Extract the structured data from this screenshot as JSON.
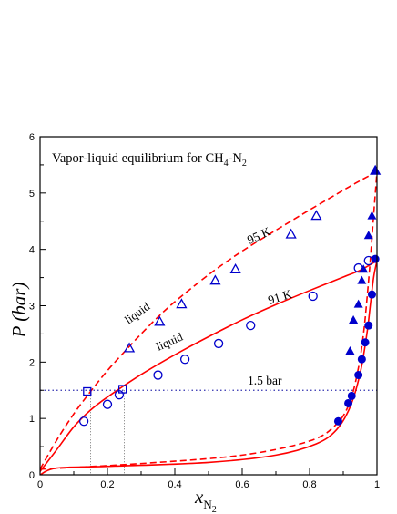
{
  "chart_data": {
    "type": "scatter",
    "title": "Vapor-liquid equilibrium for CH",
    "title_sub1": "4",
    "title_sep": "-N",
    "title_sub2": "2",
    "ylabel": "P (bar)",
    "xlabel_main": "x",
    "xlabel_sub": "N",
    "xlabel_subsub": "2",
    "xlim": [
      0,
      1
    ],
    "ylim": [
      0,
      6
    ],
    "grid": false,
    "legend": "none",
    "x_ticks": [
      "0",
      "0.2",
      "0.4",
      "0.6",
      "0.8",
      "1"
    ],
    "y_ticks": [
      "0",
      "1",
      "2",
      "3",
      "4",
      "5",
      "6"
    ],
    "annotations": {
      "k95": "95 K",
      "k91": "91 K",
      "liquid_upper": "liquid",
      "liquid_lower": "liquid",
      "bar15": "1.5 bar"
    },
    "colors": {
      "curve": "#ff0000",
      "markers": "#0000cc",
      "reference": "#3030b0"
    },
    "reference_lines": {
      "pressure": 1.5,
      "x_marks": [
        0.15,
        0.25
      ]
    },
    "series": [
      {
        "kind": "model-curve",
        "line": "dashed",
        "note": "95 K bubble curve",
        "x": [
          0.0,
          0.05,
          0.1,
          0.15,
          0.2,
          0.25,
          0.3,
          0.35,
          0.4,
          0.5,
          0.6,
          0.7,
          0.8,
          0.9,
          0.95,
          1.0
        ],
        "y": [
          0.1,
          0.62,
          1.08,
          1.48,
          1.85,
          2.18,
          2.5,
          2.8,
          3.07,
          3.55,
          3.97,
          4.34,
          4.7,
          5.05,
          5.22,
          5.38
        ]
      },
      {
        "kind": "model-curve",
        "line": "dashed",
        "note": "95 K dew curve",
        "x": [
          0.0,
          0.3,
          0.6,
          0.8,
          0.88,
          0.92,
          0.945,
          0.96,
          0.97,
          0.98,
          0.99,
          1.0
        ],
        "y": [
          0.1,
          0.2,
          0.35,
          0.6,
          0.9,
          1.3,
          1.9,
          2.5,
          3.1,
          3.8,
          4.6,
          5.38
        ]
      },
      {
        "kind": "model-curve",
        "line": "solid",
        "note": "91 K bubble curve",
        "x": [
          0.0,
          0.05,
          0.1,
          0.15,
          0.2,
          0.3,
          0.4,
          0.5,
          0.6,
          0.7,
          0.8,
          0.9,
          0.95,
          1.0
        ],
        "y": [
          0.06,
          0.45,
          0.85,
          1.15,
          1.38,
          1.78,
          2.13,
          2.45,
          2.75,
          3.02,
          3.27,
          3.51,
          3.63,
          3.8
        ]
      },
      {
        "kind": "model-curve",
        "line": "solid",
        "note": "91 K dew curve",
        "x": [
          0.0,
          0.05,
          0.2,
          0.5,
          0.7,
          0.82,
          0.88,
          0.92,
          0.95,
          0.97,
          0.98,
          0.99,
          1.0
        ],
        "y": [
          0.0,
          0.12,
          0.15,
          0.22,
          0.35,
          0.55,
          0.8,
          1.2,
          1.8,
          2.5,
          3.0,
          3.5,
          3.8
        ]
      },
      {
        "kind": "markers",
        "marker": "triangle-open",
        "x": [
          0.265,
          0.355,
          0.42,
          0.52,
          0.58,
          0.745,
          0.82,
          0.995
        ],
        "y": [
          2.25,
          2.72,
          3.03,
          3.45,
          3.65,
          4.27,
          4.6,
          5.4
        ]
      },
      {
        "kind": "markers",
        "marker": "triangle-filled",
        "x": [
          0.92,
          0.93,
          0.945,
          0.955,
          0.96,
          0.975,
          0.985,
          0.995
        ],
        "y": [
          2.2,
          2.75,
          3.03,
          3.45,
          3.65,
          4.25,
          4.6,
          5.4
        ]
      },
      {
        "kind": "markers",
        "marker": "circle-open",
        "x": [
          0.13,
          0.2,
          0.235,
          0.35,
          0.43,
          0.53,
          0.625,
          0.81,
          0.945,
          0.975
        ],
        "y": [
          0.95,
          1.25,
          1.42,
          1.77,
          2.05,
          2.33,
          2.65,
          3.17,
          3.67,
          3.8
        ]
      },
      {
        "kind": "markers",
        "marker": "circle-filled",
        "x": [
          0.885,
          0.915,
          0.925,
          0.945,
          0.955,
          0.965,
          0.975,
          0.985,
          0.995
        ],
        "y": [
          0.95,
          1.27,
          1.4,
          1.77,
          2.05,
          2.35,
          2.65,
          3.2,
          3.83
        ]
      },
      {
        "kind": "markers",
        "marker": "square-open",
        "x": [
          0.14,
          0.245
        ],
        "y": [
          1.48,
          1.52
        ]
      }
    ]
  }
}
